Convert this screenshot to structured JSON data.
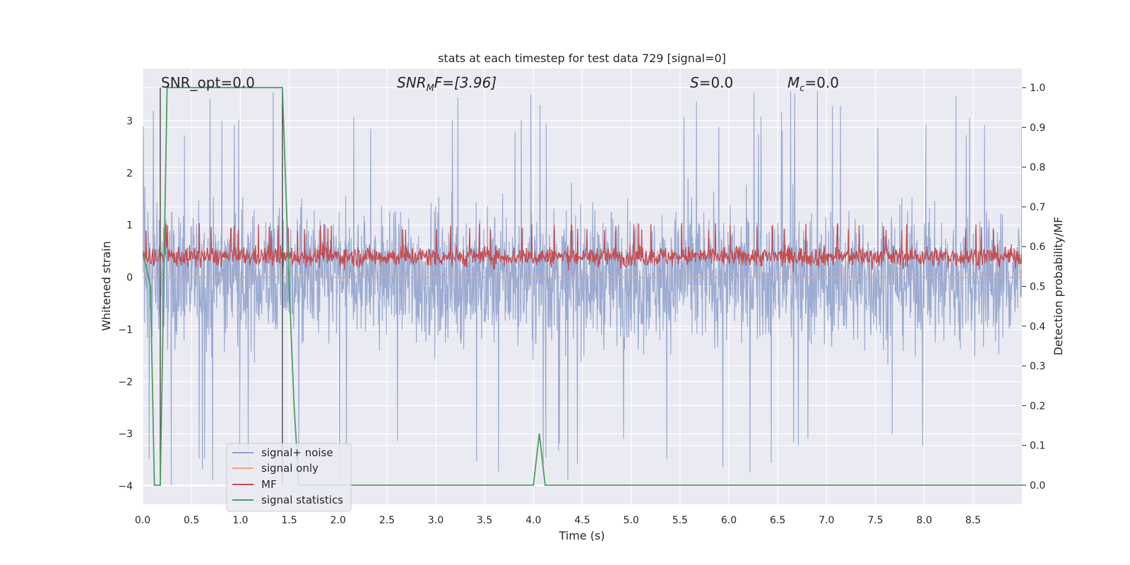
{
  "chart_data": {
    "type": "line",
    "title": "stats at each timestep for test data 729 [signal=0]",
    "xlabel": "Time (s)",
    "ylabel_left": "Whitened strain",
    "ylabel_right": "Detection probability/MF",
    "xlim": [
      0,
      9
    ],
    "ylim_left": [
      -4.35,
      4.0
    ],
    "ylim_right": [
      -0.048,
      1.048
    ],
    "x_ticks": [
      "0.0",
      "0.5",
      "1.0",
      "1.5",
      "2.0",
      "2.5",
      "3.0",
      "3.5",
      "4.0",
      "4.5",
      "5.0",
      "5.5",
      "6.0",
      "6.5",
      "7.0",
      "7.5",
      "8.0",
      "8.5"
    ],
    "y_ticks_left": [
      "3",
      "2",
      "1",
      "0",
      "−1",
      "−2",
      "−3",
      "−4"
    ],
    "y_ticks_right": [
      "1.0",
      "0.9",
      "0.8",
      "0.7",
      "0.6",
      "0.5",
      "0.4",
      "0.3",
      "0.2",
      "0.1",
      "0.0"
    ],
    "grid": true,
    "legend_position": "lower-left",
    "annotations": {
      "snr_opt": "SNR_opt=0.0",
      "snr_mf_label": "SNR",
      "snr_mf_sub": "M",
      "snr_mf_rest": "F=[3.96]",
      "s_label": "S",
      "s_rest": "=0.0",
      "mc_label": "M",
      "mc_sub": "c",
      "mc_rest": "=0.0"
    },
    "series": [
      {
        "name": "signal+ noise",
        "color": "#8da0cb",
        "axis": "left",
        "band": [
          -1.7,
          1.7
        ],
        "peak": 3.6,
        "trough": -4.0
      },
      {
        "name": "signal only",
        "color": "#e9a587",
        "axis": "left",
        "constant": 0.0
      },
      {
        "name": "MF",
        "color": "#c44e52",
        "axis": "right",
        "band": [
          0.55,
          0.6
        ],
        "peak": 0.66
      },
      {
        "name": "signal statistics",
        "color": "#4c9e5e",
        "axis": "right",
        "x": [
          0.0,
          0.08,
          0.12,
          0.18,
          0.25,
          1.43,
          1.5,
          1.55,
          1.6,
          4.0,
          4.06,
          4.12,
          9.0
        ],
        "y": [
          0.59,
          0.5,
          0.0,
          0.0,
          1.0,
          1.0,
          0.5,
          0.2,
          0.0,
          0.0,
          0.13,
          0.0,
          0.0
        ]
      }
    ],
    "vlines_x": [
      0.18,
      1.43
    ]
  }
}
